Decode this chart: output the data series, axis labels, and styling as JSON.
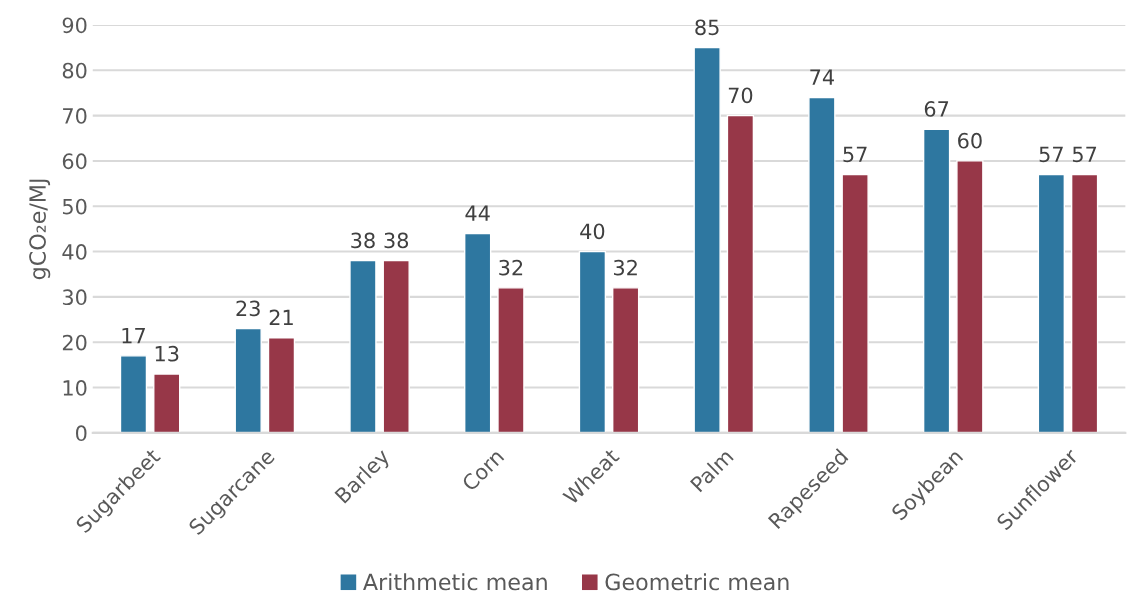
{
  "chart_data": {
    "type": "bar",
    "ylabel": "gCO₂e/MJ",
    "categories": [
      "Sugarbeet",
      "Sugarcane",
      "Barley",
      "Corn",
      "Wheat",
      "Palm",
      "Rapeseed",
      "Soybean",
      "Sunflower"
    ],
    "series": [
      {
        "name": "Arithmetic mean",
        "color": "#2e77a0",
        "values": [
          17,
          23,
          38,
          44,
          40,
          85,
          74,
          67,
          57
        ]
      },
      {
        "name": "Geometric mean",
        "color": "#973748",
        "values": [
          13,
          21,
          38,
          32,
          32,
          70,
          57,
          60,
          57
        ]
      }
    ],
    "ylim": [
      0,
      90
    ],
    "yticks": [
      0,
      10,
      20,
      30,
      40,
      50,
      60,
      70,
      80,
      90
    ],
    "grid": "y",
    "legend": "bottom",
    "data_labels": true
  }
}
